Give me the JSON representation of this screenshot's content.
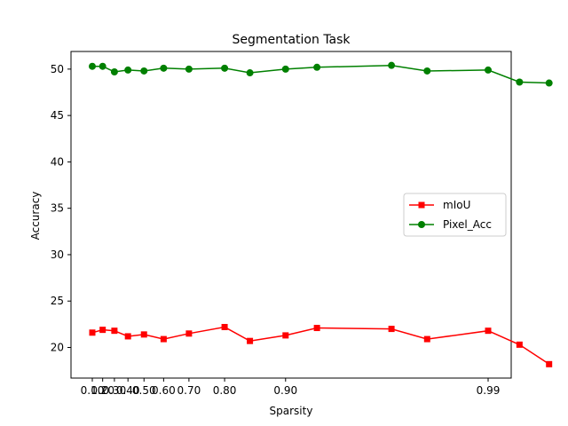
{
  "chart_data": {
    "type": "line",
    "title": "Segmentation Task",
    "xlabel": "Sparsity",
    "ylabel": "Accuracy",
    "x_tick_labels": [
      "0.10",
      "0.20",
      "0.30",
      "0.40",
      "0.50",
      "0.60",
      "0.70",
      "0.80",
      "0.90",
      "0.99"
    ],
    "y_ticks": [
      20,
      25,
      30,
      35,
      40,
      45,
      50
    ],
    "ylim": [
      16.7,
      51.9
    ],
    "grid": false,
    "legend_position": "center-right",
    "series": [
      {
        "name": "mIoU",
        "color": "#ff0000",
        "marker": "square",
        "x": [
          0.1,
          0.2,
          0.3,
          0.4,
          0.5,
          0.6,
          0.7,
          0.8,
          0.85,
          0.9,
          0.93,
          0.97,
          0.98,
          0.99,
          0.993,
          0.995
        ],
        "y": [
          21.6,
          21.9,
          21.8,
          21.2,
          21.4,
          20.9,
          21.5,
          22.2,
          20.7,
          21.3,
          22.1,
          22.0,
          20.9,
          21.8,
          20.3,
          18.2
        ]
      },
      {
        "name": "Pixel_Acc",
        "color": "#008000",
        "marker": "circle",
        "x": [
          0.1,
          0.2,
          0.3,
          0.4,
          0.5,
          0.6,
          0.7,
          0.8,
          0.85,
          0.9,
          0.93,
          0.97,
          0.98,
          0.99,
          0.993,
          0.995
        ],
        "y": [
          50.3,
          50.3,
          49.7,
          49.9,
          49.8,
          50.1,
          50.0,
          50.1,
          49.6,
          50.0,
          50.2,
          50.4,
          49.8,
          49.9,
          48.6,
          48.5
        ]
      }
    ]
  }
}
